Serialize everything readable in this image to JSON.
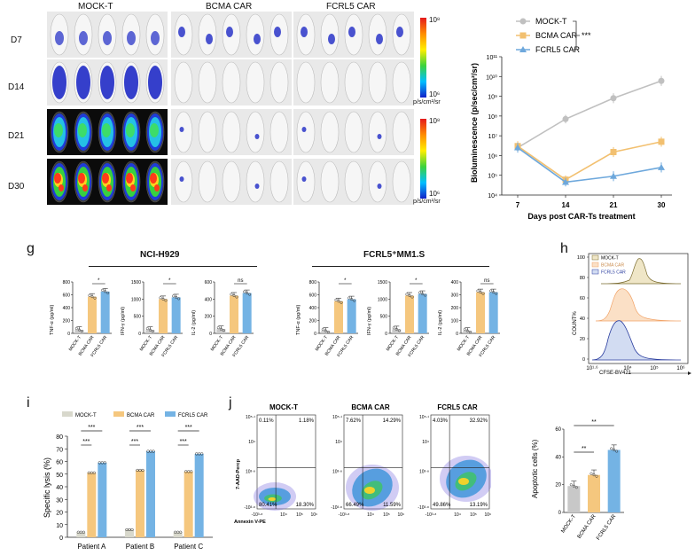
{
  "bli": {
    "columns": [
      "MOCK-T",
      "BCMA CAR",
      "FCRL5 CAR"
    ],
    "rows": [
      "D7",
      "D14",
      "D21",
      "D30"
    ],
    "scale_top": "10⁸",
    "scale_bottom": "10⁶",
    "unit": "p/s/cm²/sr"
  },
  "chart_biolum": {
    "ylabel": "Bioluminescence (p/sec/cm²/sr)",
    "xlabel": "Days post CAR-Ts treatment",
    "sig": "***",
    "legend": [
      "MOCK-T",
      "BCMA CAR",
      "FCRL5 CAR"
    ]
  },
  "panel_g": {
    "label": "g",
    "left_title": "NCI-H929",
    "right_title": "FCRL5⁺MM1.S",
    "ylabels": [
      "TNF-α  (pg/ml)",
      "IFN-γ  (pg/ml)",
      "IL-2  (pg/ml)"
    ],
    "xcats": [
      "MOCK-T",
      "BCMA CAR",
      "FCRL5 CAR"
    ]
  },
  "panel_h": {
    "label": "h",
    "legend": [
      "MOCK-T",
      "BCMA CAR",
      "FCRL5 CAR"
    ],
    "ylabel": "COUNT%",
    "xlabel": "CFSE-BV421",
    "xticks": [
      "10^1.6",
      "10^4",
      "10^5",
      "10^6"
    ],
    "yticks": [
      "100",
      "80",
      "60",
      "40",
      "20",
      "0"
    ]
  },
  "panel_i": {
    "label": "i",
    "legend": [
      "MOCK-T",
      "BCMA CAR",
      "FCRL5 CAR"
    ],
    "ylabel": "Specific lysis (%)",
    "categories": [
      "Patient A",
      "Patient B",
      "Patient C"
    ],
    "sig": "***"
  },
  "panel_j": {
    "label": "j",
    "plots": [
      {
        "title": "MOCK-T",
        "q": [
          "0.11%",
          "1.18%",
          "80.41%",
          "18.30%"
        ]
      },
      {
        "title": "BCMA CAR",
        "q": [
          "7.62%",
          "14.29%",
          "66.49%",
          "11.59%"
        ]
      },
      {
        "title": "FCRL5 CAR",
        "q": [
          "4.03%",
          "32.92%",
          "49.86%",
          "13.19%"
        ]
      }
    ],
    "ylabel": "7-AAD-Percp",
    "xlabel": "Annexin V-PE",
    "bar_ylabel": "Apoptotic cells  (%)",
    "bar_cats": [
      "MOCK-T",
      "BCMA CAR",
      "FCRL5 CAR"
    ],
    "sig": "**"
  },
  "colors": {
    "mock": "#c8c8c8",
    "bcma": "#f5c77e",
    "fcrl5": "#74b3e4",
    "line_mock": "#c0c0c0",
    "line_bcma": "#f2c070",
    "line_fcrl5": "#6ea8dc"
  },
  "chart_data": [
    {
      "type": "line",
      "title": "",
      "xlabel": "Days post CAR-Ts treatment",
      "ylabel": "Bioluminescence (p/sec/cm²/sr)",
      "x": [
        7,
        14,
        21,
        30
      ],
      "ylog": true,
      "ylim": [
        10000,
        100000000000
      ],
      "series": [
        {
          "name": "MOCK-T",
          "values": [
            2500000,
            70000000,
            800000000,
            6000000000
          ]
        },
        {
          "name": "BCMA CAR",
          "values": [
            3000000,
            60000,
            1500000,
            5000000
          ]
        },
        {
          "name": "FCRL5 CAR",
          "values": [
            2500000,
            45000,
            90000,
            250000
          ]
        }
      ]
    },
    {
      "type": "bar",
      "title": "NCI-H929",
      "ylabel": "TNF-α  (pg/ml)",
      "categories": [
        "MOCK-T",
        "BCMA CAR",
        "FCRL5 CAR"
      ],
      "values": [
        55,
        570,
        650
      ],
      "ylim": [
        0,
        800
      ],
      "yticks": [
        0,
        200,
        400,
        600,
        800
      ],
      "sig": "*"
    },
    {
      "type": "bar",
      "title": "NCI-H929",
      "ylabel": "IFN-γ  (pg/ml)",
      "categories": [
        "MOCK-T",
        "BCMA CAR",
        "FCRL5 CAR"
      ],
      "values": [
        100,
        1000,
        1050
      ],
      "ylim": [
        0,
        1500
      ],
      "yticks": [
        0,
        500,
        1000,
        1500
      ],
      "sig": "*"
    },
    {
      "type": "bar",
      "title": "NCI-H929",
      "ylabel": "IL-2  (pg/ml)",
      "categories": [
        "MOCK-T",
        "BCMA CAR",
        "FCRL5 CAR"
      ],
      "values": [
        50,
        440,
        470
      ],
      "ylim": [
        0,
        600
      ],
      "yticks": [
        0,
        200,
        400,
        600
      ],
      "sig": "ns"
    },
    {
      "type": "bar",
      "title": "FCRL5⁺MM1.S",
      "ylabel": "TNF-α  (pg/ml)",
      "categories": [
        "MOCK-T",
        "BCMA CAR",
        "FCRL5 CAR"
      ],
      "values": [
        40,
        500,
        530
      ],
      "ylim": [
        0,
        800
      ],
      "yticks": [
        0,
        200,
        400,
        600,
        800
      ],
      "sig": "*"
    },
    {
      "type": "bar",
      "title": "FCRL5⁺MM1.S",
      "ylabel": "IFN-γ  (pg/ml)",
      "categories": [
        "MOCK-T",
        "BCMA CAR",
        "FCRL5 CAR"
      ],
      "values": [
        120,
        1100,
        1150
      ],
      "ylim": [
        0,
        1500
      ],
      "yticks": [
        0,
        500,
        1000,
        1500
      ],
      "sig": "*"
    },
    {
      "type": "bar",
      "title": "FCRL5⁺MM1.S",
      "ylabel": "IL-2  (pg/ml)",
      "categories": [
        "MOCK-T",
        "BCMA CAR",
        "FCRL5 CAR"
      ],
      "values": [
        20,
        320,
        320
      ],
      "ylim": [
        0,
        400
      ],
      "yticks": [
        0,
        100,
        200,
        300,
        400
      ],
      "sig": "ns"
    },
    {
      "type": "bar",
      "title": "",
      "ylabel": "Specific lysis (%)",
      "categories": [
        "Patient A",
        "Patient B",
        "Patient C"
      ],
      "series": [
        {
          "name": "MOCK-T",
          "values": [
            4,
            6,
            4
          ]
        },
        {
          "name": "BCMA CAR",
          "values": [
            51,
            53,
            52
          ]
        },
        {
          "name": "FCRL5 CAR",
          "values": [
            59,
            68,
            66
          ]
        }
      ],
      "ylim": [
        0,
        80
      ],
      "yticks": [
        0,
        10,
        20,
        30,
        40,
        50,
        60,
        70,
        80
      ]
    },
    {
      "type": "bar",
      "title": "",
      "ylabel": "Apoptotic cells  (%)",
      "categories": [
        "MOCK-T",
        "BCMA CAR",
        "FCRL5 CAR"
      ],
      "values": [
        19,
        27,
        45
      ],
      "ylim": [
        0,
        60
      ],
      "yticks": [
        0,
        20,
        40,
        60
      ]
    }
  ]
}
